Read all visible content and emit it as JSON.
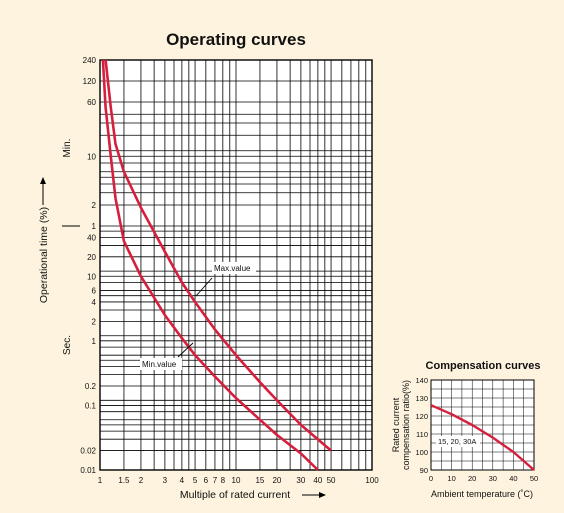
{
  "chart_data": [
    {
      "type": "line",
      "title": "Operating curves",
      "xlabel": "Multiple of rated current",
      "ylabel": "Operational time (%)",
      "y_unit_upper": "Min.",
      "y_unit_lower": "Sec.",
      "x_scale": "log",
      "y_scale": "log",
      "xlim": [
        1,
        100
      ],
      "x_ticks": [
        1,
        1.5,
        2,
        3,
        4,
        5,
        6,
        7,
        8,
        10,
        15,
        20,
        30,
        40,
        50,
        100
      ],
      "x_tick_labels": [
        "1",
        "1.5",
        "2",
        "3",
        "4",
        "5",
        "6",
        "7",
        "8",
        "10",
        "15",
        "20",
        "30",
        "40",
        "50",
        "100"
      ],
      "y_ticks_min": [
        240,
        120,
        60,
        10,
        2,
        1
      ],
      "y_ticks_sec": [
        40,
        20,
        10,
        6,
        4,
        2,
        1,
        0.2,
        0.1,
        0.02,
        0.01
      ],
      "ylim_seconds": [
        0.01,
        14400
      ],
      "grid": true,
      "series": [
        {
          "name": "Max.value",
          "color": "#d61f3c",
          "points": [
            [
              1.1,
              14400
            ],
            [
              1.2,
              3000
            ],
            [
              1.3,
              900
            ],
            [
              1.5,
              360
            ],
            [
              2,
              110
            ],
            [
              3,
              24
            ],
            [
              4,
              8
            ],
            [
              5,
              4
            ],
            [
              7,
              1.5
            ],
            [
              10,
              0.6
            ],
            [
              15,
              0.23
            ],
            [
              20,
              0.12
            ],
            [
              30,
              0.05
            ],
            [
              50,
              0.02
            ]
          ]
        },
        {
          "name": "Min.value",
          "color": "#d61f3c",
          "points": [
            [
              1.05,
              14400
            ],
            [
              1.1,
              3000
            ],
            [
              1.2,
              600
            ],
            [
              1.3,
              150
            ],
            [
              1.5,
              35
            ],
            [
              2,
              10
            ],
            [
              3,
              2.5
            ],
            [
              4,
              1.1
            ],
            [
              5,
              0.6
            ],
            [
              7,
              0.28
            ],
            [
              10,
              0.13
            ],
            [
              15,
              0.06
            ],
            [
              20,
              0.035
            ],
            [
              30,
              0.018
            ],
            [
              40,
              0.01
            ]
          ]
        }
      ],
      "annotations": [
        "Max.value",
        "Min.value"
      ]
    },
    {
      "type": "line",
      "title": "Compensation curves",
      "xlabel": "Ambient temperature (˚C)",
      "ylabel_lines": [
        "Rated current",
        "compensation ratio(%)"
      ],
      "xlim": [
        0,
        50
      ],
      "ylim": [
        90,
        140
      ],
      "x_ticks": [
        0,
        10,
        20,
        30,
        40,
        50
      ],
      "y_ticks": [
        90,
        100,
        110,
        120,
        130,
        140
      ],
      "grid": true,
      "series": [
        {
          "name": "15, 20, 30A",
          "color": "#d61f3c",
          "points": [
            [
              0,
              126
            ],
            [
              10,
              121
            ],
            [
              20,
              115
            ],
            [
              30,
              108
            ],
            [
              40,
              100
            ],
            [
              50,
              90
            ]
          ]
        }
      ]
    }
  ]
}
